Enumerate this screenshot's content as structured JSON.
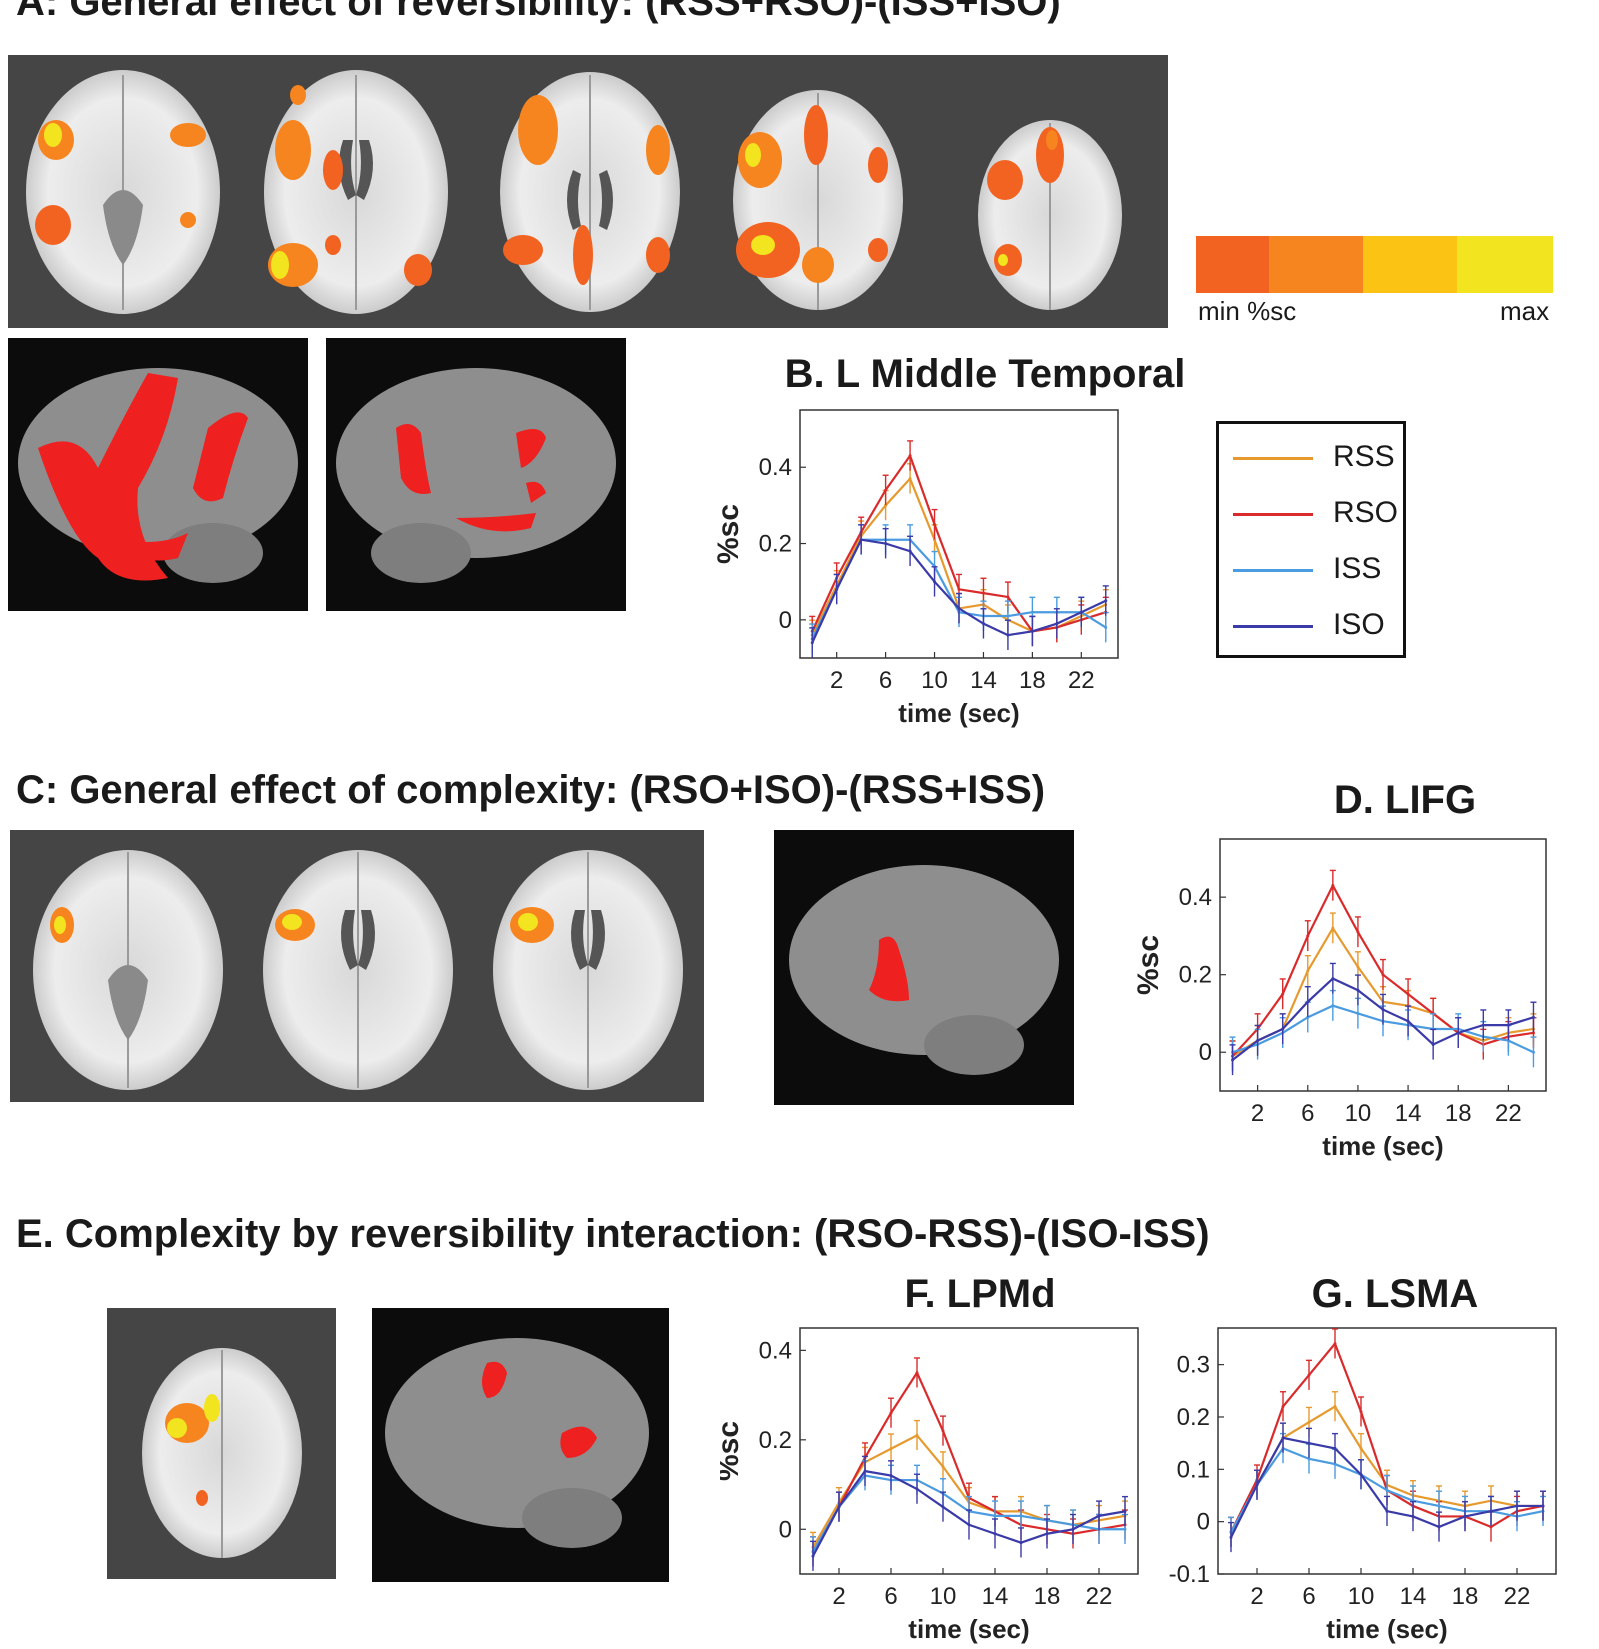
{
  "headings": {
    "a": "A:  General effect of reversibility:  (RSS+RSO)-(ISS+ISO)",
    "c": "C:  General effect of complexity:  (RSO+ISO)-(RSS+ISS)",
    "e": "E.  Complexity by reversibility interaction:  (RSO-RSS)-(ISO-ISS)"
  },
  "colorbar": {
    "min_label": "min %sc",
    "max_label": "max",
    "colors": [
      "#f26322",
      "#f6841f",
      "#fbc314",
      "#f2e41e"
    ]
  },
  "legend": [
    {
      "name": "RSS",
      "color": "#e69a2e"
    },
    {
      "name": "RSO",
      "color": "#d92b2b"
    },
    {
      "name": "ISS",
      "color": "#4a9be0"
    },
    {
      "name": "ISO",
      "color": "#3a3aa8"
    }
  ],
  "chart_data": [
    {
      "id": "B",
      "type": "line",
      "title": "B. L Middle Temporal",
      "xlabel": "time (sec)",
      "ylabel": "%sc",
      "xlim": [
        -1,
        25
      ],
      "ylim": [
        -0.1,
        0.55
      ],
      "xticks": [
        2,
        6,
        10,
        14,
        18,
        22
      ],
      "yticks": [
        0,
        0.2,
        0.4
      ],
      "x": [
        0,
        2,
        4,
        6,
        8,
        10,
        12,
        14,
        16,
        18,
        20,
        22,
        24
      ],
      "series": [
        {
          "name": "RSS",
          "values": [
            -0.04,
            0.09,
            0.22,
            0.3,
            0.37,
            0.21,
            0.03,
            0.04,
            0.0,
            -0.03,
            -0.02,
            0.01,
            0.04
          ]
        },
        {
          "name": "RSO",
          "values": [
            -0.03,
            0.11,
            0.23,
            0.34,
            0.43,
            0.25,
            0.08,
            0.07,
            0.06,
            -0.03,
            -0.02,
            0.0,
            0.02
          ]
        },
        {
          "name": "ISS",
          "values": [
            -0.05,
            0.08,
            0.21,
            0.21,
            0.21,
            0.14,
            0.02,
            0.01,
            0.01,
            0.02,
            0.02,
            0.02,
            -0.02
          ]
        },
        {
          "name": "ISO",
          "values": [
            -0.06,
            0.08,
            0.21,
            0.2,
            0.18,
            0.1,
            0.03,
            -0.01,
            -0.04,
            -0.03,
            -0.01,
            0.02,
            0.05
          ]
        }
      ]
    },
    {
      "id": "D",
      "type": "line",
      "title": "D. LIFG",
      "xlabel": "time (sec)",
      "ylabel": "%sc",
      "xlim": [
        -1,
        25
      ],
      "ylim": [
        -0.1,
        0.55
      ],
      "xticks": [
        2,
        6,
        10,
        14,
        18,
        22
      ],
      "yticks": [
        0,
        0.2,
        0.4
      ],
      "x": [
        0,
        2,
        4,
        6,
        8,
        10,
        12,
        14,
        16,
        18,
        20,
        22,
        24
      ],
      "series": [
        {
          "name": "RSS",
          "values": [
            -0.01,
            0.03,
            0.06,
            0.21,
            0.32,
            0.22,
            0.13,
            0.12,
            0.1,
            0.05,
            0.03,
            0.05,
            0.06
          ]
        },
        {
          "name": "RSO",
          "values": [
            -0.01,
            0.06,
            0.15,
            0.3,
            0.43,
            0.31,
            0.2,
            0.15,
            0.1,
            0.05,
            0.02,
            0.04,
            0.05
          ]
        },
        {
          "name": "ISS",
          "values": [
            0.0,
            0.02,
            0.05,
            0.09,
            0.12,
            0.1,
            0.08,
            0.07,
            0.06,
            0.06,
            0.04,
            0.03,
            0.0
          ]
        },
        {
          "name": "ISO",
          "values": [
            -0.02,
            0.03,
            0.06,
            0.13,
            0.19,
            0.16,
            0.11,
            0.08,
            0.02,
            0.05,
            0.07,
            0.07,
            0.09
          ]
        }
      ]
    },
    {
      "id": "F",
      "type": "line",
      "title": "F.  LPMd",
      "xlabel": "time (sec)",
      "ylabel": "%sc",
      "xlim": [
        -1,
        25
      ],
      "ylim": [
        -0.1,
        0.45
      ],
      "xticks": [
        2,
        6,
        10,
        14,
        18,
        22
      ],
      "yticks": [
        0,
        0.2,
        0.4
      ],
      "x": [
        0,
        2,
        4,
        6,
        8,
        10,
        12,
        14,
        16,
        18,
        20,
        22,
        24
      ],
      "series": [
        {
          "name": "RSS",
          "values": [
            -0.04,
            0.06,
            0.15,
            0.18,
            0.21,
            0.14,
            0.06,
            0.04,
            0.04,
            0.02,
            0.01,
            0.02,
            0.03
          ]
        },
        {
          "name": "RSO",
          "values": [
            -0.05,
            0.05,
            0.16,
            0.26,
            0.35,
            0.22,
            0.07,
            0.04,
            0.01,
            0.0,
            -0.01,
            0.0,
            0.01
          ]
        },
        {
          "name": "ISS",
          "values": [
            -0.05,
            0.05,
            0.12,
            0.11,
            0.11,
            0.08,
            0.04,
            0.03,
            0.03,
            0.02,
            0.01,
            0.0,
            0.0
          ]
        },
        {
          "name": "ISO",
          "values": [
            -0.06,
            0.05,
            0.13,
            0.12,
            0.09,
            0.05,
            0.01,
            -0.01,
            -0.03,
            -0.01,
            0.0,
            0.03,
            0.04
          ]
        }
      ]
    },
    {
      "id": "G",
      "type": "line",
      "title": "G.  LSMA",
      "xlabel": "time (sec)",
      "ylabel": "",
      "xlim": [
        -1,
        25
      ],
      "ylim": [
        -0.1,
        0.37
      ],
      "xticks": [
        2,
        6,
        10,
        14,
        18,
        22
      ],
      "yticks": [
        -0.1,
        0,
        0.1,
        0.2,
        0.3
      ],
      "x": [
        0,
        2,
        4,
        6,
        8,
        10,
        12,
        14,
        16,
        18,
        20,
        22,
        24
      ],
      "series": [
        {
          "name": "RSS",
          "values": [
            -0.02,
            0.07,
            0.16,
            0.19,
            0.22,
            0.14,
            0.07,
            0.05,
            0.04,
            0.03,
            0.04,
            0.03,
            0.03
          ]
        },
        {
          "name": "RSO",
          "values": [
            -0.02,
            0.08,
            0.22,
            0.28,
            0.34,
            0.21,
            0.06,
            0.03,
            0.01,
            0.01,
            -0.01,
            0.02,
            0.03
          ]
        },
        {
          "name": "ISS",
          "values": [
            -0.02,
            0.07,
            0.14,
            0.12,
            0.11,
            0.09,
            0.06,
            0.04,
            0.03,
            0.02,
            0.02,
            0.01,
            0.02
          ]
        },
        {
          "name": "ISO",
          "values": [
            -0.03,
            0.07,
            0.16,
            0.15,
            0.14,
            0.09,
            0.02,
            0.01,
            -0.01,
            0.01,
            0.02,
            0.03,
            0.03
          ]
        }
      ]
    }
  ]
}
